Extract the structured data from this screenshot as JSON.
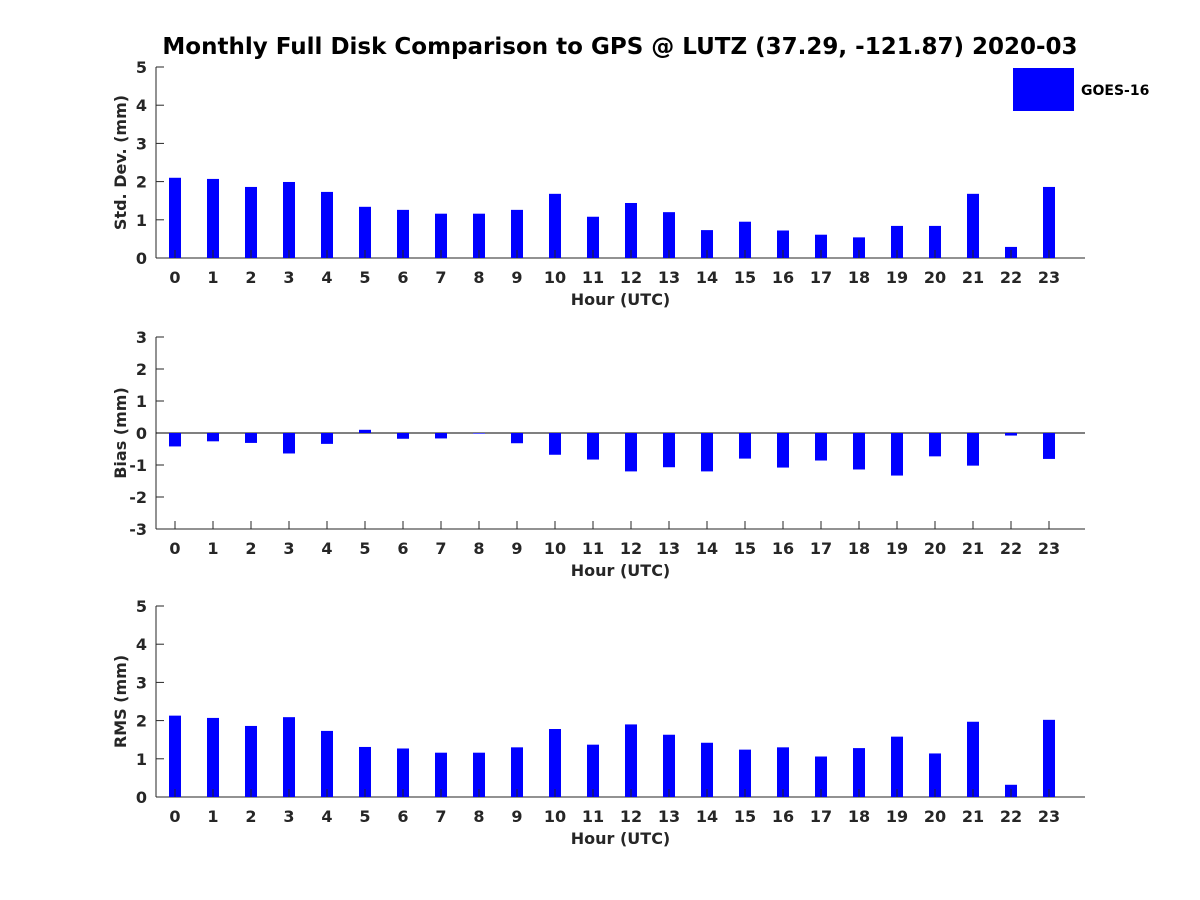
{
  "title": "Monthly Full Disk Comparison to GPS @ LUTZ (37.29, -121.87) 2020-03",
  "legend": {
    "label": "GOES-16",
    "color": "#0000ff"
  },
  "chart_data": [
    {
      "type": "bar",
      "xlabel": "Hour (UTC)",
      "ylabel": "Std. Dev. (mm)",
      "ylim": [
        0,
        5
      ],
      "yticks": [
        0,
        1,
        2,
        3,
        4,
        5
      ],
      "categories": [
        0,
        1,
        2,
        3,
        4,
        5,
        6,
        7,
        8,
        9,
        10,
        11,
        12,
        13,
        14,
        15,
        16,
        17,
        18,
        19,
        20,
        21,
        22,
        23
      ],
      "series": [
        {
          "name": "GOES-16",
          "color": "#0000ff",
          "values": [
            2.1,
            2.07,
            1.86,
            1.99,
            1.73,
            1.34,
            1.26,
            1.16,
            1.16,
            1.26,
            1.68,
            1.08,
            1.44,
            1.2,
            0.73,
            0.95,
            0.72,
            0.61,
            0.54,
            0.84,
            0.84,
            1.68,
            0.29,
            1.86
          ]
        }
      ]
    },
    {
      "type": "bar",
      "xlabel": "Hour (UTC)",
      "ylabel": "Bias (mm)",
      "ylim": [
        -3,
        3
      ],
      "yticks": [
        -3,
        -2,
        -1,
        0,
        1,
        2,
        3
      ],
      "categories": [
        0,
        1,
        2,
        3,
        4,
        5,
        6,
        7,
        8,
        9,
        10,
        11,
        12,
        13,
        14,
        15,
        16,
        17,
        18,
        19,
        20,
        21,
        22,
        23
      ],
      "series": [
        {
          "name": "GOES-16",
          "color": "#0000ff",
          "values": [
            -0.42,
            -0.26,
            -0.31,
            -0.64,
            -0.34,
            0.1,
            -0.18,
            -0.17,
            -0.02,
            -0.32,
            -0.68,
            -0.83,
            -1.2,
            -1.07,
            -1.2,
            -0.8,
            -1.08,
            -0.86,
            -1.14,
            -1.33,
            -0.73,
            -1.02,
            -0.08,
            -0.81
          ]
        }
      ]
    },
    {
      "type": "bar",
      "xlabel": "Hour (UTC)",
      "ylabel": "RMS (mm)",
      "ylim": [
        0,
        5
      ],
      "yticks": [
        0,
        1,
        2,
        3,
        4,
        5
      ],
      "categories": [
        0,
        1,
        2,
        3,
        4,
        5,
        6,
        7,
        8,
        9,
        10,
        11,
        12,
        13,
        14,
        15,
        16,
        17,
        18,
        19,
        20,
        21,
        22,
        23
      ],
      "series": [
        {
          "name": "GOES-16",
          "color": "#0000ff",
          "values": [
            2.13,
            2.07,
            1.86,
            2.09,
            1.73,
            1.31,
            1.27,
            1.16,
            1.16,
            1.3,
            1.78,
            1.37,
            1.9,
            1.63,
            1.42,
            1.24,
            1.3,
            1.06,
            1.28,
            1.58,
            1.14,
            1.97,
            0.32,
            2.02
          ]
        }
      ]
    }
  ]
}
